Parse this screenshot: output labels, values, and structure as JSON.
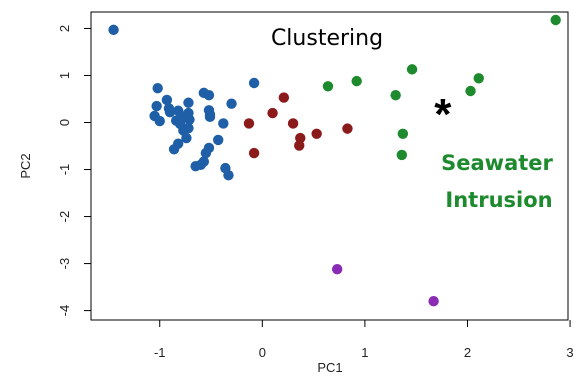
{
  "chart_data": {
    "type": "scatter",
    "title": "Clustering",
    "xlabel": "PC1",
    "ylabel": "PC2",
    "xlim": [
      -1.67,
      2.98
    ],
    "ylim": [
      -4.2,
      2.35
    ],
    "x_ticks": [
      -1,
      0,
      1,
      2,
      3
    ],
    "x_tick_labels": [
      "-1",
      "0",
      "1",
      "2",
      "3"
    ],
    "y_ticks": [
      2,
      1,
      0,
      -1,
      -2,
      -3,
      -4
    ],
    "y_tick_labels": [
      "2",
      "1",
      "0",
      "-1",
      "-2",
      "-3",
      "-4"
    ],
    "grid": false,
    "series": [
      {
        "color": "#1f5fa8",
        "points": [
          [
            -1.45,
            1.97
          ],
          [
            -1.02,
            0.73
          ],
          [
            -1.03,
            0.35
          ],
          [
            -1.05,
            0.14
          ],
          [
            -1.0,
            0.03
          ],
          [
            -0.93,
            0.48
          ],
          [
            -0.91,
            0.3
          ],
          [
            -0.9,
            0.22
          ],
          [
            -0.82,
            0.25
          ],
          [
            -0.84,
            0.04
          ],
          [
            -0.77,
            0.13
          ],
          [
            -0.8,
            -0.03
          ],
          [
            -0.77,
            -0.17
          ],
          [
            -0.72,
            0.2
          ],
          [
            -0.71,
            0.06
          ],
          [
            -0.72,
            -0.12
          ],
          [
            -0.74,
            -0.33
          ],
          [
            -0.82,
            -0.45
          ],
          [
            -0.86,
            -0.57
          ],
          [
            -0.72,
            0.42
          ],
          [
            -0.57,
            0.63
          ],
          [
            -0.52,
            0.58
          ],
          [
            -0.52,
            0.26
          ],
          [
            -0.51,
            0.17
          ],
          [
            -0.43,
            -0.37
          ],
          [
            -0.38,
            -0.02
          ],
          [
            -0.3,
            0.4
          ],
          [
            -0.08,
            0.84
          ],
          [
            -0.51,
            0.12
          ],
          [
            -0.52,
            -0.54
          ],
          [
            -0.57,
            -0.83
          ],
          [
            -0.55,
            -0.65
          ],
          [
            -0.6,
            -0.9
          ],
          [
            -0.36,
            -0.97
          ],
          [
            -0.33,
            -1.12
          ],
          [
            -0.65,
            -0.93
          ]
        ]
      },
      {
        "color": "#8b1a1a",
        "points": [
          [
            -0.13,
            -0.02
          ],
          [
            -0.08,
            -0.65
          ],
          [
            0.1,
            0.2
          ],
          [
            0.21,
            0.53
          ],
          [
            0.3,
            -0.02
          ],
          [
            0.37,
            -0.33
          ],
          [
            0.36,
            -0.49
          ],
          [
            0.53,
            -0.24
          ],
          [
            0.83,
            -0.13
          ]
        ]
      },
      {
        "color": "#1e8a2e",
        "points": [
          [
            0.64,
            0.77
          ],
          [
            0.92,
            0.88
          ],
          [
            1.3,
            0.58
          ],
          [
            1.37,
            -0.24
          ],
          [
            1.36,
            -0.69
          ],
          [
            1.46,
            1.13
          ],
          [
            2.03,
            0.67
          ],
          [
            2.11,
            0.94
          ],
          [
            2.86,
            2.18
          ]
        ]
      },
      {
        "color": "#8a2bb5",
        "points": [
          [
            0.73,
            -3.12
          ],
          [
            1.67,
            -3.8
          ]
        ]
      }
    ],
    "special_marker": {
      "symbol": "*",
      "x": 1.76,
      "y": 0.42
    },
    "annotation": {
      "text_line1": "Seawater",
      "text_line2": "Intrusion",
      "color": "#1e8a2e"
    }
  }
}
